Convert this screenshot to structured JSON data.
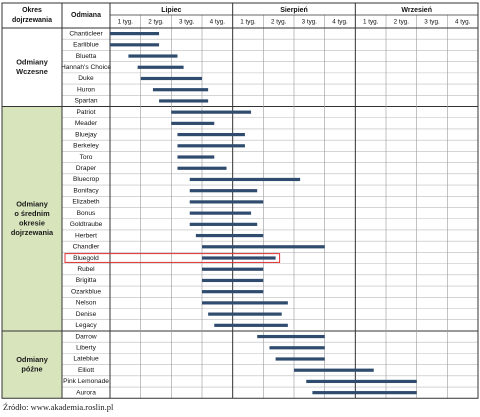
{
  "chart_data": {
    "type": "gantt",
    "headers": {
      "period": [
        "Okres",
        "dojrzewania"
      ],
      "variety": "Odmiana"
    },
    "months": [
      "Lipiec",
      "Sierpień",
      "Wrzesień"
    ],
    "week_labels": [
      "1 tyg.",
      "2 tyg.",
      "3 tyg.",
      "4 tyg."
    ],
    "units": "weeks from start of July (0 = 1 tyg. Lipiec)",
    "groups": [
      {
        "label": [
          "Odmiany",
          "Wczesne"
        ],
        "fill": "#ffffff",
        "varieties": [
          {
            "name": "Chanticleer",
            "start": 0.0,
            "end": 1.6
          },
          {
            "name": "Earliblue",
            "start": 0.0,
            "end": 1.6
          },
          {
            "name": "Bluetta",
            "start": 0.6,
            "end": 2.2
          },
          {
            "name": "Hannah's Choice",
            "start": 0.9,
            "end": 2.4
          },
          {
            "name": "Duke",
            "start": 1.0,
            "end": 3.0
          },
          {
            "name": "Huron",
            "start": 1.4,
            "end": 3.2
          },
          {
            "name": "Spartan",
            "start": 1.6,
            "end": 3.2
          }
        ]
      },
      {
        "label": [
          "Odmiany",
          "o średnim",
          "okresie",
          "dojrzewania"
        ],
        "fill": "#d8e4bc",
        "varieties": [
          {
            "name": "Patriot",
            "start": 2.0,
            "end": 4.6
          },
          {
            "name": "Meader",
            "start": 2.0,
            "end": 3.4
          },
          {
            "name": "Bluejay",
            "start": 2.2,
            "end": 4.4
          },
          {
            "name": "Berkeley",
            "start": 2.2,
            "end": 4.4
          },
          {
            "name": "Toro",
            "start": 2.2,
            "end": 3.4
          },
          {
            "name": "Draper",
            "start": 2.2,
            "end": 3.8
          },
          {
            "name": "Bluecrop",
            "start": 2.6,
            "end": 6.2
          },
          {
            "name": "Bonifacy",
            "start": 2.6,
            "end": 4.8
          },
          {
            "name": "Elizabeth",
            "start": 2.6,
            "end": 5.0
          },
          {
            "name": "Bonus",
            "start": 2.6,
            "end": 4.6
          },
          {
            "name": "Goldtraube",
            "start": 2.6,
            "end": 4.8
          },
          {
            "name": "Herbert",
            "start": 2.8,
            "end": 5.0
          },
          {
            "name": "Chandler",
            "start": 3.0,
            "end": 7.0
          },
          {
            "name": "Bluegold",
            "start": 3.0,
            "end": 5.4,
            "highlight": true
          },
          {
            "name": "Rubel",
            "start": 3.0,
            "end": 5.0
          },
          {
            "name": "Brigitta",
            "start": 3.0,
            "end": 5.0
          },
          {
            "name": "Ozarkblue",
            "start": 3.0,
            "end": 5.0
          },
          {
            "name": "Nelson",
            "start": 3.0,
            "end": 5.8
          },
          {
            "name": "Denise",
            "start": 3.2,
            "end": 5.6
          },
          {
            "name": "Legacy",
            "start": 3.4,
            "end": 5.8
          }
        ]
      },
      {
        "label": [
          "Odmiany",
          "późne"
        ],
        "fill": "#d8e4bc",
        "varieties": [
          {
            "name": "Darrow",
            "start": 4.8,
            "end": 7.0
          },
          {
            "name": "Liberty",
            "start": 5.2,
            "end": 7.0
          },
          {
            "name": "Lateblue",
            "start": 5.4,
            "end": 7.0
          },
          {
            "name": "Elliott",
            "start": 6.0,
            "end": 8.6
          },
          {
            "name": "Pink Lemonade",
            "start": 6.4,
            "end": 10.0
          },
          {
            "name": "Aurora",
            "start": 6.6,
            "end": 10.0
          }
        ]
      }
    ],
    "bar_color": "#2f4c6e",
    "highlight_color": "#e03030",
    "source": "Źródło: www.akademia.roslin.pl"
  }
}
